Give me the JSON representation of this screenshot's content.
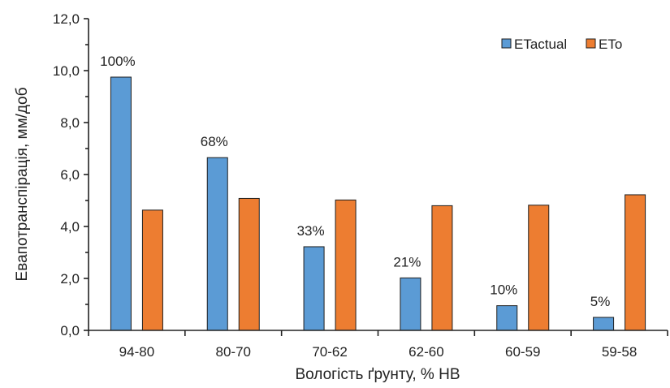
{
  "chart_data": {
    "type": "bar",
    "title": "",
    "xlabel": "Вологість ґрунту, % НВ",
    "ylabel": "Евапотранспірація, мм/доб",
    "categories": [
      "94-80",
      "80-70",
      "70-62",
      "62-60",
      "60-59",
      "59-58"
    ],
    "ylim": [
      0,
      12
    ],
    "yticks": [
      "0,0",
      "2,0",
      "4,0",
      "6,0",
      "8,0",
      "10,0",
      "12,0"
    ],
    "ytick_values": [
      0,
      2,
      4,
      6,
      8,
      10,
      12
    ],
    "grid": false,
    "legend_position": "top-right",
    "series": [
      {
        "name": "ETactual",
        "color": "#5b9bd5",
        "values": [
          9.75,
          6.65,
          3.22,
          2.02,
          0.95,
          0.5
        ],
        "labels": [
          "100%",
          "68%",
          "33%",
          "21%",
          "10%",
          "5%"
        ]
      },
      {
        "name": "ETo",
        "color": "#ed7d31",
        "values": [
          4.63,
          5.08,
          5.02,
          4.8,
          4.82,
          5.22
        ]
      }
    ]
  }
}
